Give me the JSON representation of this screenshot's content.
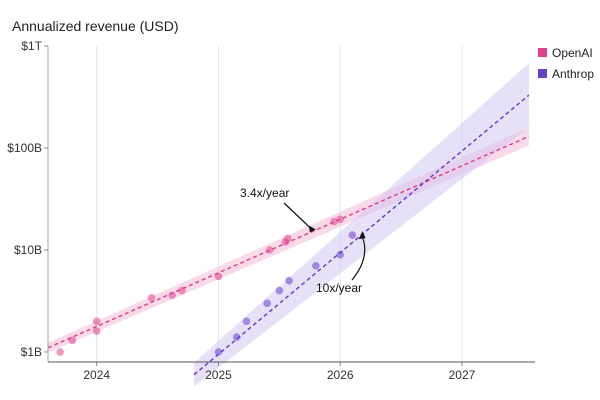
{
  "chart_data": {
    "type": "scatter",
    "title": "Annualized revenue (USD)",
    "y_scale": "log",
    "ylim": [
      1,
      1000
    ],
    "xlim": [
      2023.6,
      2027.6
    ],
    "x_ticks": [
      {
        "value": 2024,
        "label": "2024"
      },
      {
        "value": 2025,
        "label": "2025"
      },
      {
        "value": 2026,
        "label": "2026"
      },
      {
        "value": 2027,
        "label": "2027"
      }
    ],
    "y_ticks": [
      {
        "value": 1,
        "label": "$1B"
      },
      {
        "value": 10,
        "label": "$10B"
      },
      {
        "value": 100,
        "label": "$100B"
      },
      {
        "value": 1000,
        "label": "$1T"
      }
    ],
    "grid": {
      "vertical": true,
      "horizontal": false
    },
    "legend_position": "top-right",
    "series": [
      {
        "name": "OpenAI",
        "color": "#e0428c",
        "band_color": "#f4bcd6",
        "points": [
          {
            "x": 2023.7,
            "y": 1.0
          },
          {
            "x": 2023.8,
            "y": 1.3
          },
          {
            "x": 2024.0,
            "y": 1.6
          },
          {
            "x": 2024.0,
            "y": 2.0
          },
          {
            "x": 2024.45,
            "y": 3.4
          },
          {
            "x": 2024.62,
            "y": 3.6
          },
          {
            "x": 2024.7,
            "y": 4.0
          },
          {
            "x": 2025.0,
            "y": 5.5
          },
          {
            "x": 2025.42,
            "y": 10.0
          },
          {
            "x": 2025.55,
            "y": 12.0
          },
          {
            "x": 2025.57,
            "y": 13.0
          },
          {
            "x": 2025.95,
            "y": 19.0
          },
          {
            "x": 2026.0,
            "y": 20.0
          }
        ],
        "trend": {
          "x_start": 2023.6,
          "y_start": 1.1,
          "x_end": 2027.55,
          "y_end": 130
        }
      },
      {
        "name": "Anthrop",
        "color": "#6a3fc8",
        "band_color": "#d4c8f2",
        "points": [
          {
            "x": 2025.0,
            "y": 1.0
          },
          {
            "x": 2025.15,
            "y": 1.4
          },
          {
            "x": 2025.23,
            "y": 2.0
          },
          {
            "x": 2025.4,
            "y": 3.0
          },
          {
            "x": 2025.5,
            "y": 4.0
          },
          {
            "x": 2025.58,
            "y": 5.0
          },
          {
            "x": 2025.8,
            "y": 7.0
          },
          {
            "x": 2026.0,
            "y": 9.0
          },
          {
            "x": 2026.1,
            "y": 14.0
          }
        ],
        "trend": {
          "x_start": 2024.8,
          "y_start": 0.6,
          "x_end": 2027.55,
          "y_end": 330
        }
      }
    ],
    "annotations": [
      {
        "text": "3.4x/year",
        "target_x": 2025.8,
        "target_y": 17
      },
      {
        "text": "10x/year",
        "target_x": 2026.2,
        "target_y": 16
      }
    ]
  }
}
